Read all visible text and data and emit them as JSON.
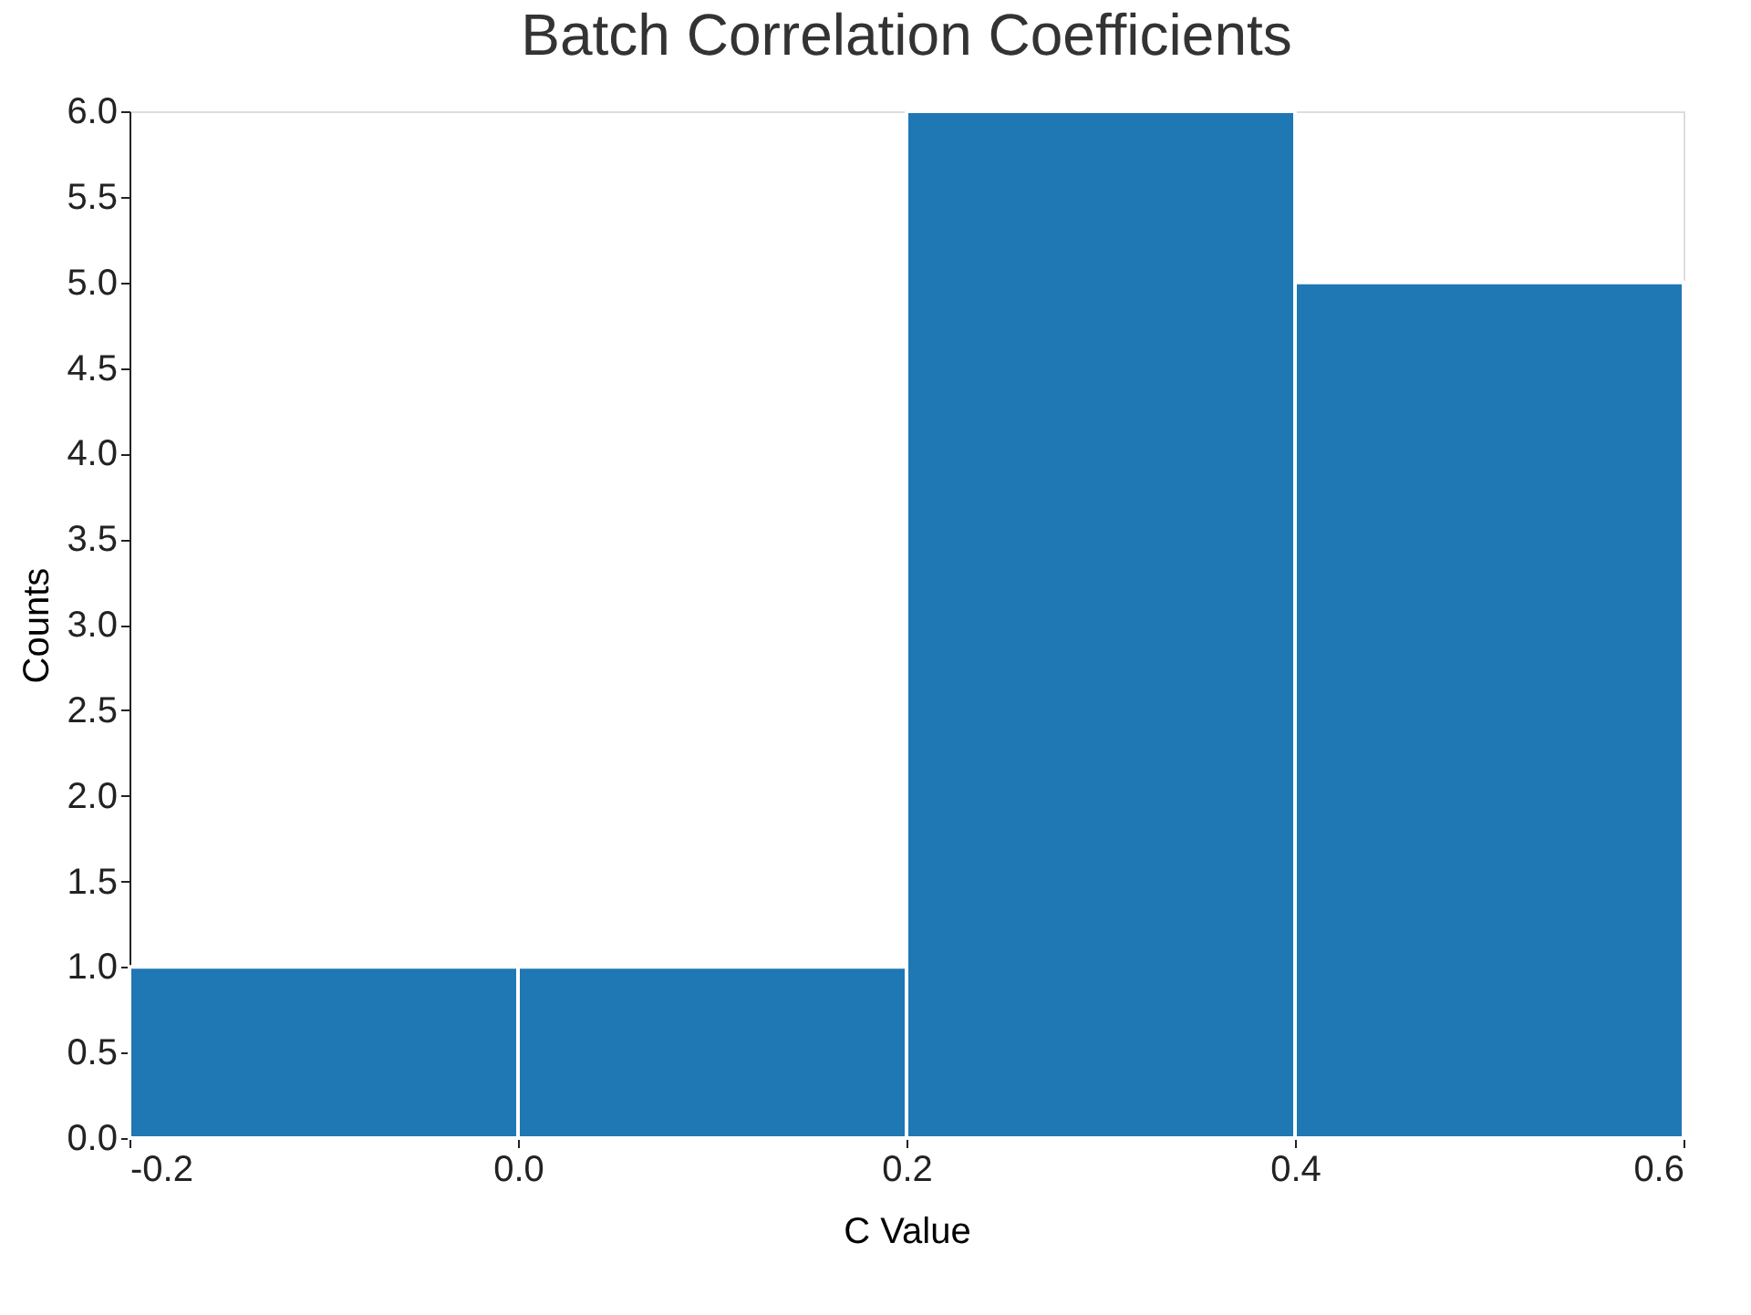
{
  "chart_data": {
    "type": "histogram",
    "title": "Batch Correlation Coefficients",
    "xlabel": "C Value",
    "ylabel": "Counts",
    "bins": [
      -0.2,
      0.0,
      0.2,
      0.4,
      0.6
    ],
    "values": [
      1,
      1,
      6,
      5
    ],
    "color": "#1f77b4",
    "xlim": [
      -0.2,
      0.6
    ],
    "xticks": [
      -0.2,
      {
        "value": 0.0,
        "label": "0.0"
      },
      0.2,
      0.4,
      0.6
    ],
    "ylim": [
      0,
      6
    ],
    "yticks": [
      {
        "value": 0,
        "label": "0.0"
      },
      0.5,
      {
        "value": 1,
        "label": "1.0"
      },
      1.5,
      {
        "value": 2,
        "label": "2.0"
      },
      2.5,
      {
        "value": 3,
        "label": "3.0"
      },
      3.5,
      {
        "value": 4,
        "label": "4.0"
      },
      4.5,
      {
        "value": 5,
        "label": "5.0"
      },
      5.5,
      {
        "value": 6,
        "label": "6.0"
      }
    ],
    "grid": false
  }
}
